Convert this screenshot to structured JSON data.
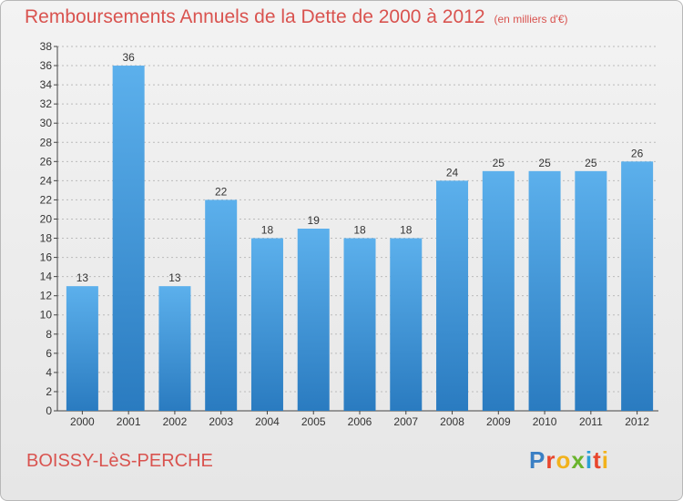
{
  "header": {
    "title": "Remboursements Annuels de la Dette de 2000 à 2012",
    "unit": "(en milliers d'€)"
  },
  "footer": {
    "commune": "BOISSY-LèS-PERCHE",
    "logo_text": "Proxiti",
    "logo_colors": [
      "#3a7fc4",
      "#e8462d",
      "#f2b21c",
      "#6ab42d",
      "#2a9fd6",
      "#e8462d",
      "#f2b21c"
    ]
  },
  "colors": {
    "bar_top": "#5cb0ec",
    "bar_bottom": "#2a7bc0",
    "text": "#333333",
    "grid": "#bbbbbb",
    "axis": "#444444"
  },
  "chart_data": {
    "type": "bar",
    "title": "Remboursements Annuels de la Dette de 2000 à 2012",
    "subtitle": "(en milliers d'€)",
    "categories": [
      "2000",
      "2001",
      "2002",
      "2003",
      "2004",
      "2005",
      "2006",
      "2007",
      "2008",
      "2009",
      "2010",
      "2011",
      "2012"
    ],
    "values": [
      13,
      36,
      13,
      22,
      18,
      19,
      18,
      18,
      24,
      25,
      25,
      25,
      26
    ],
    "ylim": [
      0,
      38
    ],
    "yticks": [
      0,
      2,
      4,
      6,
      8,
      10,
      12,
      14,
      16,
      18,
      20,
      22,
      24,
      26,
      28,
      30,
      32,
      34,
      36,
      38
    ],
    "grid": true,
    "data_labels": true,
    "xlabel": "",
    "ylabel": ""
  }
}
